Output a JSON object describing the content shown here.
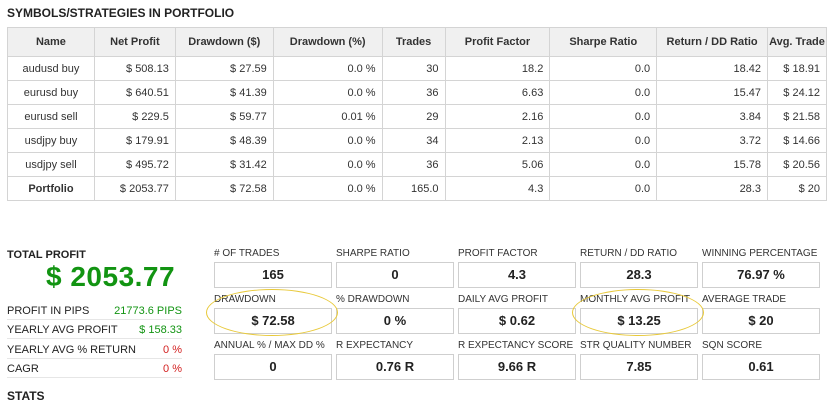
{
  "portfolio_section": {
    "title": "SYMBOLS/STRATEGIES IN PORTFOLIO"
  },
  "table": {
    "headers": [
      "Name",
      "Net Profit",
      "Drawdown ($)",
      "Drawdown (%)",
      "Trades",
      "Profit Factor",
      "Sharpe Ratio",
      "Return / DD Ratio",
      "Avg. Trade"
    ],
    "rows": [
      [
        "audusd buy",
        "$ 508.13",
        "$ 27.59",
        "0.0 %",
        "30",
        "18.2",
        "0.0",
        "18.42",
        "$ 18.91"
      ],
      [
        "eurusd buy",
        "$ 640.51",
        "$ 41.39",
        "0.0 %",
        "36",
        "6.63",
        "0.0",
        "15.47",
        "$ 24.12"
      ],
      [
        "eurusd sell",
        "$ 229.5",
        "$ 59.77",
        "0.01 %",
        "29",
        "2.16",
        "0.0",
        "3.84",
        "$ 21.58"
      ],
      [
        "usdjpy buy",
        "$ 179.91",
        "$ 48.39",
        "0.0 %",
        "34",
        "2.13",
        "0.0",
        "3.72",
        "$ 14.66"
      ],
      [
        "usdjpy sell",
        "$ 495.72",
        "$ 31.42",
        "0.0 %",
        "36",
        "5.06",
        "0.0",
        "15.78",
        "$ 20.56"
      ],
      [
        "Portfolio",
        "$ 2053.77",
        "$ 72.58",
        "0.0 %",
        "165.0",
        "4.3",
        "0.0",
        "28.3",
        "$ 20"
      ]
    ]
  },
  "summary": {
    "total_profit_label": "TOTAL PROFIT",
    "total_profit_value": "$ 2053.77",
    "profit_in_pips_label": "PROFIT IN PIPS",
    "profit_in_pips_value": "21773.6 PIPS",
    "yearly_avg_profit_label": "YEARLY AVG PROFIT",
    "yearly_avg_profit_value": "$ 158.33",
    "yearly_avg_return_label": "YEARLY AVG % RETURN",
    "yearly_avg_return_value": "0 %",
    "cagr_label": "CAGR",
    "cagr_value": "0 %",
    "value_colors": {
      "positive": "#129412",
      "zero": "#d32020"
    }
  },
  "metrics": {
    "num_trades": {
      "label": "# OF TRADES",
      "value": "165"
    },
    "sharpe_ratio": {
      "label": "SHARPE RATIO",
      "value": "0"
    },
    "profit_factor": {
      "label": "PROFIT FACTOR",
      "value": "4.3"
    },
    "return_dd_ratio": {
      "label": "RETURN / DD RATIO",
      "value": "28.3"
    },
    "winning_percentage": {
      "label": "WINNING PERCENTAGE",
      "value": "76.97 %"
    },
    "drawdown": {
      "label": "DRAWDOWN",
      "value": "$ 72.58"
    },
    "pct_drawdown": {
      "label": "% DRAWDOWN",
      "value": "0 %"
    },
    "daily_avg_profit": {
      "label": "DAILY AVG PROFIT",
      "value": "$ 0.62"
    },
    "monthly_avg_profit": {
      "label": "MONTHLY AVG PROFIT",
      "value": "$ 13.25"
    },
    "average_trade": {
      "label": "AVERAGE TRADE",
      "value": "$ 20"
    },
    "annual_max_dd": {
      "label": "ANNUAL % / MAX DD %",
      "value": "0"
    },
    "r_expectancy": {
      "label": "R EXPECTANCY",
      "value": "0.76 R"
    },
    "r_expectancy_score": {
      "label": "R EXPECTANCY SCORE",
      "value": "9.66 R"
    },
    "str_quality_number": {
      "label": "STR QUALITY NUMBER",
      "value": "7.85"
    },
    "sqn_score": {
      "label": "SQN SCORE",
      "value": "0.61"
    }
  },
  "stats_section": {
    "title": "STATS"
  },
  "colors": {
    "highlight": "#e8c93a",
    "header_bg": "#f0f0f0",
    "border": "#d4d4d4"
  }
}
